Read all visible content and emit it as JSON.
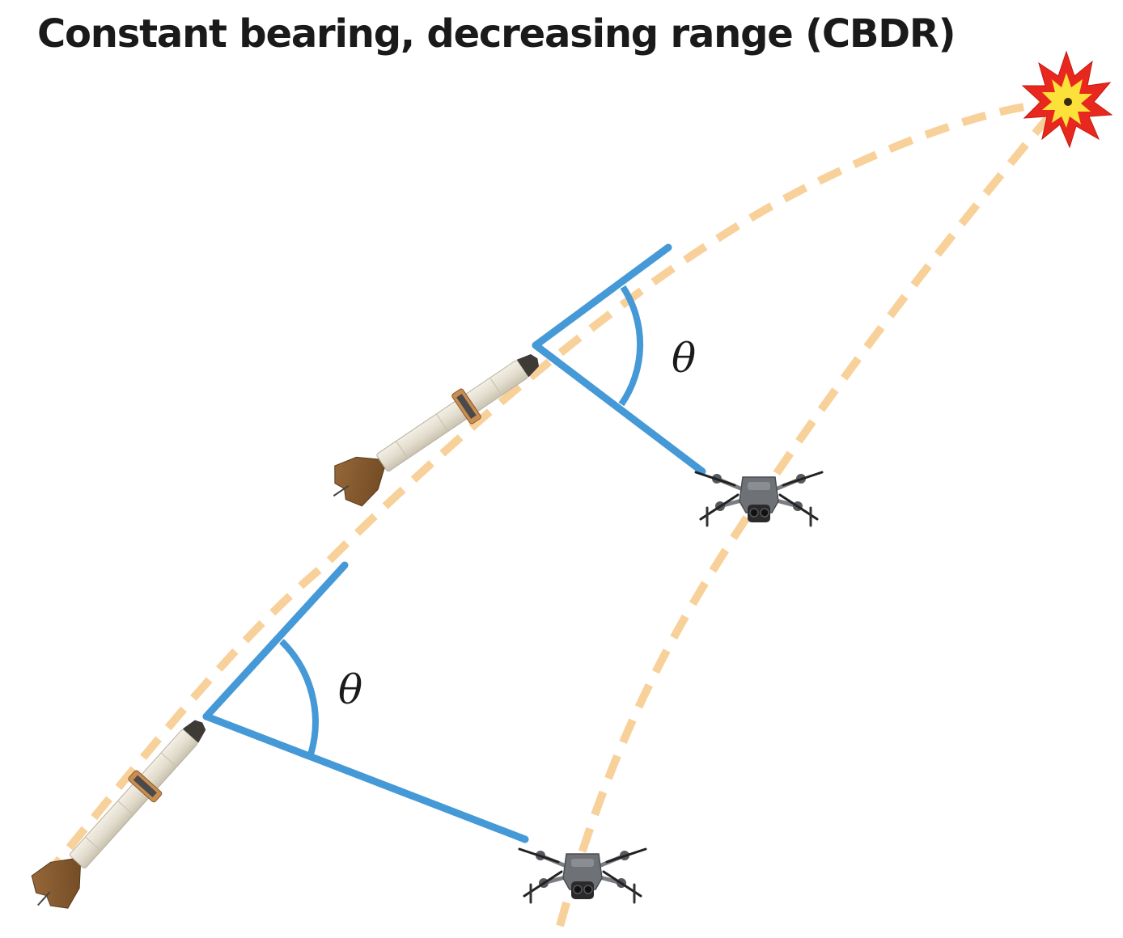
{
  "title": "Constant bearing, decreasing range (CBDR)",
  "angle_labels": {
    "upper": "θ",
    "lower": "θ"
  },
  "icons": {
    "missile": "missile-icon",
    "drone": "drone-icon",
    "explosion": "explosion-icon"
  },
  "colors": {
    "path": "#F8D19A",
    "bearing_line": "#4499D6",
    "explosion_outer": "#E8281E",
    "explosion_inner": "#FBE13A",
    "text": "#1a1a1a"
  }
}
